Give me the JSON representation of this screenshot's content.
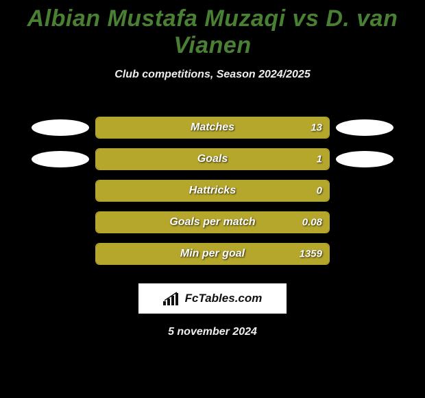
{
  "title": "Albian Mustafa Muzaqi vs D. van Vianen",
  "subtitle": "Club competitions, Season 2024/2025",
  "colors": {
    "title_color": "#4a8033",
    "bar_fill": "#b5a62c",
    "bar_border": "#b5a62c",
    "background": "#000000",
    "text": "#ffffff"
  },
  "player_left_has_photo": true,
  "player_right_has_photo": true,
  "bars": [
    {
      "label": "Matches",
      "left_value": "",
      "right_value": "13",
      "fill_pct": 100,
      "show_left_ellipse": true,
      "show_right_ellipse": true
    },
    {
      "label": "Goals",
      "left_value": "",
      "right_value": "1",
      "fill_pct": 100,
      "show_left_ellipse": true,
      "show_right_ellipse": true
    },
    {
      "label": "Hattricks",
      "left_value": "",
      "right_value": "0",
      "fill_pct": 100,
      "show_left_ellipse": false,
      "show_right_ellipse": false
    },
    {
      "label": "Goals per match",
      "left_value": "",
      "right_value": "0.08",
      "fill_pct": 100,
      "show_left_ellipse": false,
      "show_right_ellipse": false
    },
    {
      "label": "Min per goal",
      "left_value": "",
      "right_value": "1359",
      "fill_pct": 100,
      "show_left_ellipse": false,
      "show_right_ellipse": false
    }
  ],
  "logo_text": "FcTables.com",
  "date_text": "5 november 2024"
}
